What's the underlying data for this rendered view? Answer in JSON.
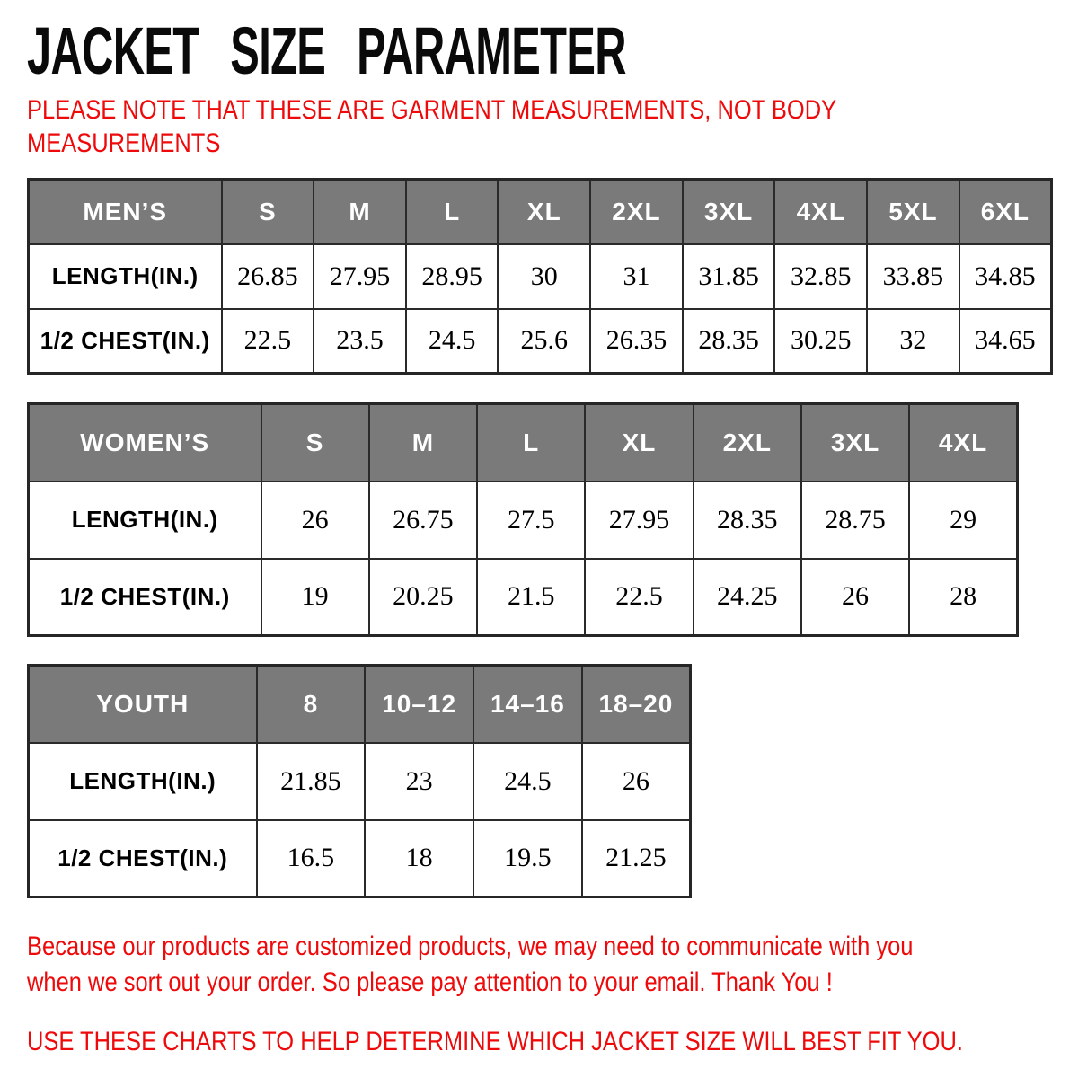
{
  "title": "JACKET SIZE PARAMETER",
  "note": {
    "lines": [
      "PLEASE NOTE THAT THESE ARE GARMENT MEASUREMENTS, NOT BODY",
      "MEASUREMENTS"
    ]
  },
  "colors": {
    "header_bg": "#7a7a7a",
    "header_text": "#ffffff",
    "accent_red": "#ee0a0a",
    "table_border": "#2a2a2a"
  },
  "tables": [
    {
      "id": "mens",
      "label": "MEN’S",
      "sizes": [
        "S",
        "M",
        "L",
        "XL",
        "2XL",
        "3XL",
        "4XL",
        "5XL",
        "6XL"
      ],
      "rows": [
        {
          "label": "LENGTH(IN.)",
          "values": [
            "26.85",
            "27.95",
            "28.95",
            "30",
            "31",
            "31.85",
            "32.85",
            "33.85",
            "34.85"
          ]
        },
        {
          "label": "1/2 CHEST(IN.)",
          "values": [
            "22.5",
            "23.5",
            "24.5",
            "25.6",
            "26.35",
            "28.35",
            "30.25",
            "32",
            "34.65"
          ]
        }
      ]
    },
    {
      "id": "womens",
      "label": "WOMEN’S",
      "sizes": [
        "S",
        "M",
        "L",
        "XL",
        "2XL",
        "3XL",
        "4XL"
      ],
      "rows": [
        {
          "label": "LENGTH(IN.)",
          "values": [
            "26",
            "26.75",
            "27.5",
            "27.95",
            "28.35",
            "28.75",
            "29"
          ]
        },
        {
          "label": "1/2 CHEST(IN.)",
          "values": [
            "19",
            "20.25",
            "21.5",
            "22.5",
            "24.25",
            "26",
            "28"
          ]
        }
      ]
    },
    {
      "id": "youth",
      "label": "YOUTH",
      "sizes": [
        "8",
        "10–12",
        "14–16",
        "18–20"
      ],
      "rows": [
        {
          "label": "LENGTH(IN.)",
          "values": [
            "21.85",
            "23",
            "24.5",
            "26"
          ]
        },
        {
          "label": "1/2 CHEST(IN.)",
          "values": [
            "16.5",
            "18",
            "19.5",
            "21.25"
          ]
        }
      ]
    }
  ],
  "footer": {
    "paragraph1_lines": [
      "Because our products are customized products, we may need to communicate with you",
      "when we sort out your order. So please pay attention to your email. Thank You !"
    ],
    "paragraph2": "USE THESE CHARTS TO HELP DETERMINE WHICH JACKET SIZE WILL BEST FIT YOU."
  }
}
